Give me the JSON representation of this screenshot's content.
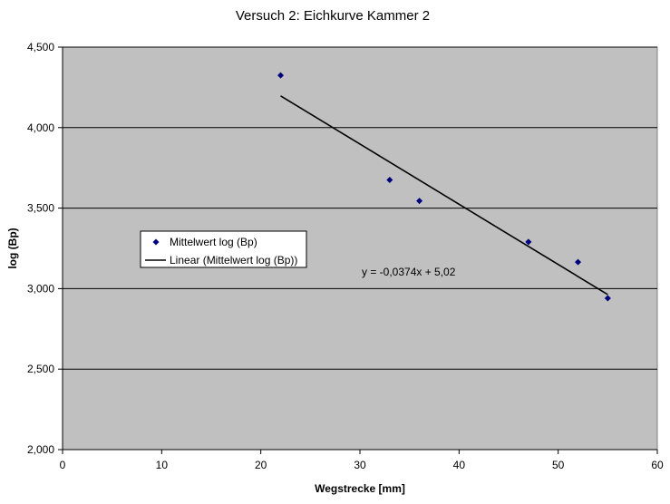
{
  "chart_data": {
    "type": "scatter",
    "title": "Versuch 2: Eichkurve Kammer 2",
    "xlabel": "Wegstrecke [mm]",
    "ylabel": "log (Bp)",
    "xlim": [
      0,
      60
    ],
    "ylim": [
      2.0,
      4.5
    ],
    "xticks": [
      "0",
      "10",
      "20",
      "30",
      "40",
      "50",
      "60"
    ],
    "yticks": [
      "2,000",
      "2,500",
      "3,000",
      "3,500",
      "4,000",
      "4,500"
    ],
    "grid": "horizontal",
    "plot_background": "#c0c0c0",
    "series": [
      {
        "name": "Mittelwert log (Bp)",
        "marker": "diamond",
        "color": "#000080",
        "points": [
          {
            "x": 22,
            "y": 4.325
          },
          {
            "x": 33,
            "y": 3.675
          },
          {
            "x": 36,
            "y": 3.545
          },
          {
            "x": 47,
            "y": 3.29
          },
          {
            "x": 52,
            "y": 3.165
          },
          {
            "x": 55,
            "y": 2.94
          }
        ]
      }
    ],
    "trendline": {
      "name": "Linear (Mittelwert log (Bp))",
      "color": "#000000",
      "slope": -0.0374,
      "intercept": 5.02,
      "x_range": [
        22,
        55
      ],
      "equation": "y = -0,0374x + 5,02"
    },
    "legend": {
      "placement": "left-middle",
      "entries": [
        "Mittelwert log (Bp)",
        "Linear (Mittelwert log (Bp))"
      ]
    }
  }
}
